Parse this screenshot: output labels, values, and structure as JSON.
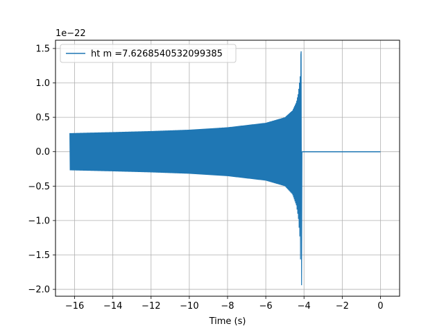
{
  "chart_data": {
    "type": "line",
    "title": "",
    "xlabel": "Time (s)",
    "ylabel": "",
    "y_offset_label": "1e−22",
    "xlim": [
      -17,
      1
    ],
    "ylim": [
      -2.1,
      1.62
    ],
    "x_ticks": [
      -16,
      -14,
      -12,
      -10,
      -8,
      -6,
      -4,
      -2,
      0
    ],
    "x_tick_labels": [
      "−16",
      "−14",
      "−12",
      "−10",
      "−8",
      "−6",
      "−4",
      "−2",
      "0"
    ],
    "y_ticks": [
      -2.0,
      -1.5,
      -1.0,
      -0.5,
      0.0,
      0.5,
      1.0,
      1.5
    ],
    "y_tick_labels": [
      "−2.0",
      "−1.5",
      "−1.0",
      "−0.5",
      "0.0",
      "0.5",
      "1.0",
      "1.5"
    ],
    "grid": true,
    "legend_position": "top-left",
    "series": [
      {
        "name": "ht m =7.6268540532099385",
        "color": "#1f77b4",
        "x_start": -16.25,
        "merger_time": -4.15,
        "x_end": 0,
        "upper_envelope": [
          [
            -16.25,
            0.27
          ],
          [
            -14,
            0.285
          ],
          [
            -12,
            0.3
          ],
          [
            -10,
            0.32
          ],
          [
            -8,
            0.355
          ],
          [
            -6,
            0.42
          ],
          [
            -5,
            0.5
          ],
          [
            -4.6,
            0.6
          ],
          [
            -4.4,
            0.72
          ],
          [
            -4.3,
            0.85
          ],
          [
            -4.2,
            1.1
          ],
          [
            -4.16,
            1.46
          ]
        ],
        "lower_envelope": [
          [
            -16.25,
            -0.27
          ],
          [
            -14,
            -0.285
          ],
          [
            -12,
            -0.3
          ],
          [
            -10,
            -0.32
          ],
          [
            -8,
            -0.355
          ],
          [
            -6,
            -0.42
          ],
          [
            -5,
            -0.5
          ],
          [
            -4.6,
            -0.62
          ],
          [
            -4.4,
            -0.78
          ],
          [
            -4.3,
            -0.95
          ],
          [
            -4.2,
            -1.3
          ],
          [
            -4.16,
            -1.94
          ]
        ],
        "post_merger_value": 0.0
      }
    ]
  }
}
